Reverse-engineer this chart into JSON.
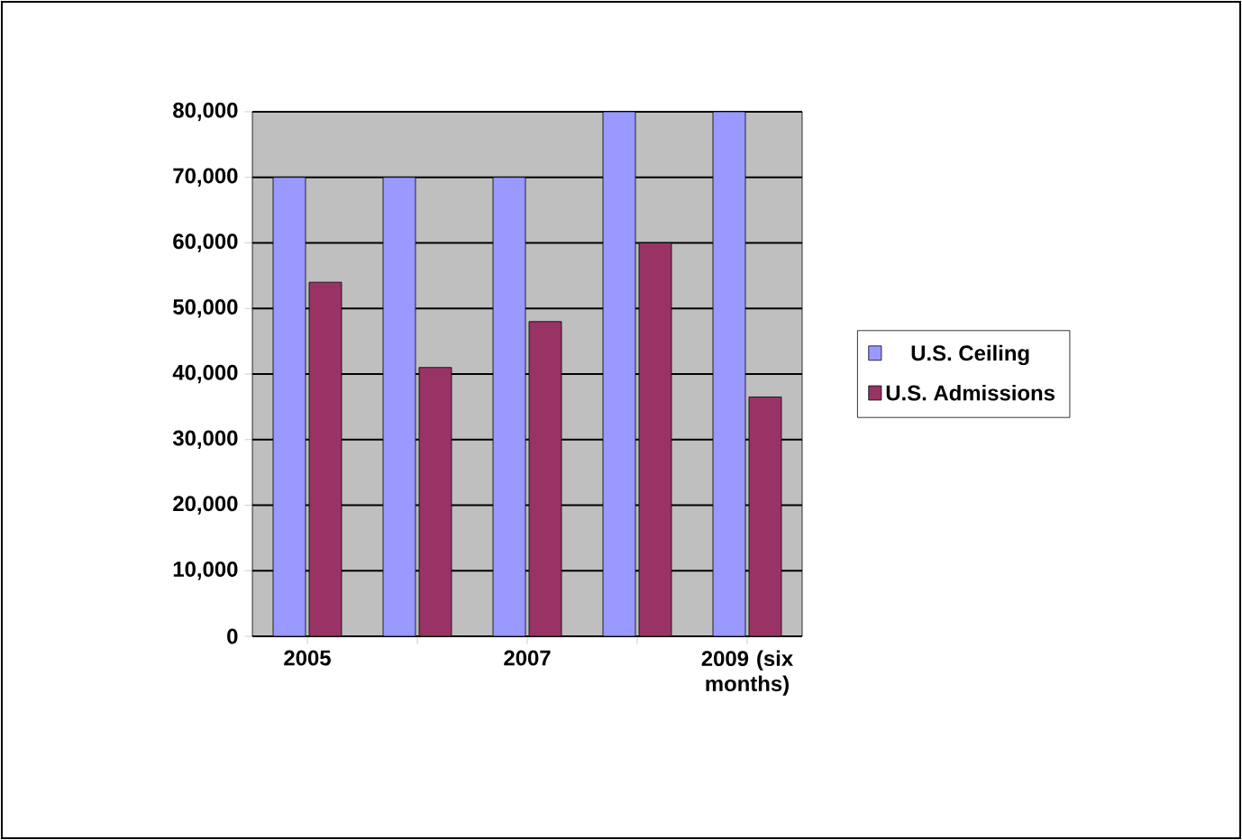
{
  "chart_data": {
    "type": "bar",
    "categories": [
      "2005",
      null,
      "2007",
      null,
      "2009 (six months)"
    ],
    "series": [
      {
        "name": "U.S. Ceiling",
        "color": "#9999ff",
        "values": [
          70000,
          70000,
          70000,
          80000,
          80000
        ]
      },
      {
        "name": "U.S. Admissions",
        "color": "#993366",
        "values": [
          54000,
          41000,
          48000,
          60000,
          36500
        ]
      }
    ],
    "ylim": [
      0,
      80000
    ],
    "yticks": [
      {
        "value": 0,
        "label": "0"
      },
      {
        "value": 10000,
        "label": "10,000"
      },
      {
        "value": 20000,
        "label": "20,000"
      },
      {
        "value": 30000,
        "label": "30,000"
      },
      {
        "value": 40000,
        "label": "40,000"
      },
      {
        "value": 50000,
        "label": "50,000"
      },
      {
        "value": 60000,
        "label": "60,000"
      },
      {
        "value": 70000,
        "label": "70,000"
      },
      {
        "value": 80000,
        "label": "80,000"
      }
    ],
    "grid": "y",
    "legend": "right"
  }
}
